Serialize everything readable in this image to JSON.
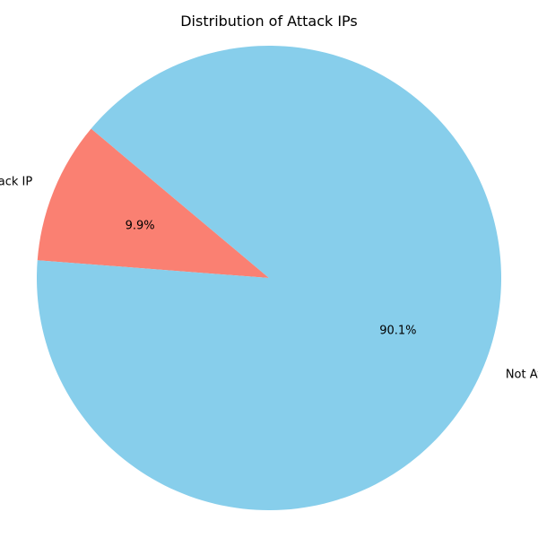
{
  "chart_data": {
    "type": "pie",
    "title": "Distribution of Attack IPs",
    "labels": [
      "Attack IP",
      "Not Attack IP"
    ],
    "values": [
      9.9,
      90.1
    ],
    "percent_labels": [
      "9.9%",
      "90.1%"
    ],
    "colors": [
      "#fa8072",
      "#87ceeb"
    ],
    "start_angle_deg": 140,
    "direction": "counterclockwise",
    "legend": "none"
  }
}
